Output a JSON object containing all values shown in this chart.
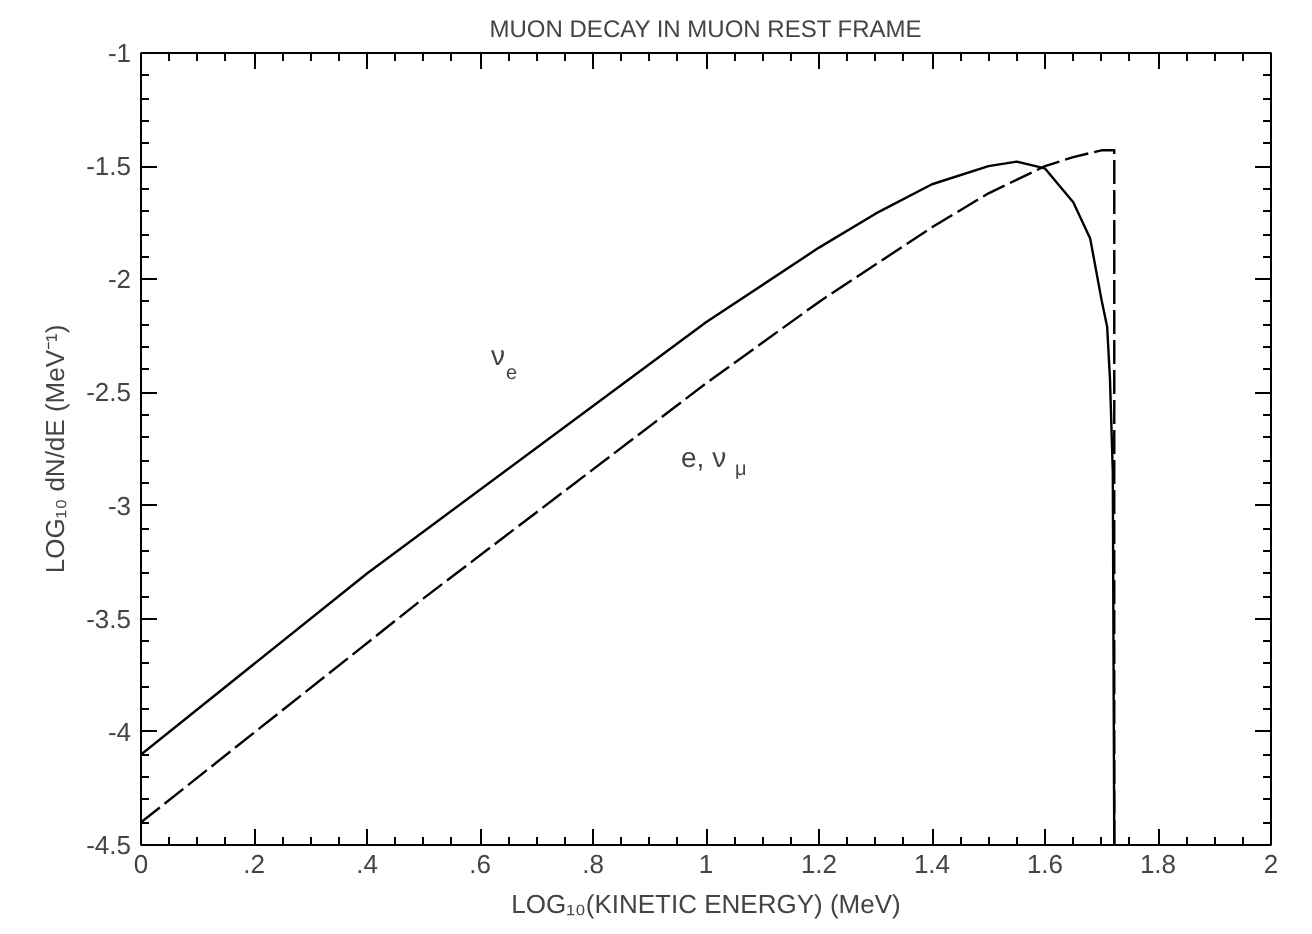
{
  "chart_data": {
    "type": "line",
    "title": "MUON DECAY IN MUON REST FRAME",
    "xlabel": "LOG₁₀(KINETIC ENERGY) (MeV)",
    "ylabel": "LOG₁₀ dN/dE (MeV⁻¹)",
    "xlim": [
      0,
      2
    ],
    "ylim": [
      -4.5,
      -1
    ],
    "xticks": [
      0,
      {
        "value": 0.2,
        "label": ".2"
      },
      {
        "value": 0.4,
        "label": ".4"
      },
      {
        "value": 0.6,
        "label": ".6"
      },
      {
        "value": 0.8,
        "label": ".8"
      },
      1,
      1.2,
      1.4,
      1.6,
      1.8,
      2
    ],
    "yticks": [
      -4.5,
      -4,
      -3.5,
      -3,
      -2.5,
      -2,
      -1.5,
      -1
    ],
    "marker": "none",
    "series": [
      {
        "color": "#000000",
        "line_style": "solid",
        "x": [
          0,
          0.4,
          0.8,
          1.0,
          1.2,
          1.3,
          1.4,
          1.5,
          1.55,
          1.6,
          1.65,
          1.68,
          1.7,
          1.71,
          1.715,
          1.72,
          1.7226
        ],
        "values": [
          -4.1,
          -3.3,
          -2.56,
          -2.19,
          -1.86,
          -1.71,
          -1.58,
          -1.5,
          -1.48,
          -1.51,
          -1.66,
          -1.82,
          -2.09,
          -2.21,
          -2.44,
          -2.85,
          -4.5
        ]
      },
      {
        "color": "#000000",
        "line_style": "dashed",
        "x": [
          0,
          0.5,
          0.8,
          1.0,
          1.2,
          1.4,
          1.5,
          1.6,
          1.65,
          1.7,
          1.72,
          1.7226,
          1.7226
        ],
        "values": [
          -4.4,
          -3.41,
          -2.84,
          -2.46,
          -2.1,
          -1.77,
          -1.62,
          -1.5,
          -1.46,
          -1.43,
          -1.43,
          -1.43,
          -4.5
        ]
      }
    ],
    "annotations": [
      "ν$_{e}$",
      "e, ν$_{μ}$"
    ]
  }
}
